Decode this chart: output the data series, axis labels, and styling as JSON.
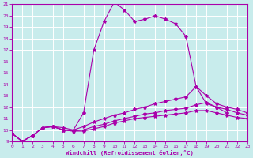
{
  "xlabel": "Windchill (Refroidissement éolien,°C)",
  "xlim": [
    0,
    23
  ],
  "ylim": [
    9,
    21
  ],
  "yticks": [
    9,
    10,
    11,
    12,
    13,
    14,
    15,
    16,
    17,
    18,
    19,
    20,
    21
  ],
  "xticks": [
    0,
    1,
    2,
    3,
    4,
    5,
    6,
    7,
    8,
    9,
    10,
    11,
    12,
    13,
    14,
    15,
    16,
    17,
    18,
    19,
    20,
    21,
    22,
    23
  ],
  "background_color": "#c8ecec",
  "grid_color": "#ffffff",
  "line_color": "#aa00aa",
  "line1_x": [
    0,
    1,
    2,
    3,
    4,
    5,
    6,
    7,
    8,
    9,
    10,
    11,
    12,
    13,
    14,
    15,
    16,
    17,
    18,
    19,
    20,
    21
  ],
  "line1_y": [
    9.7,
    9.0,
    9.5,
    10.2,
    10.3,
    10.2,
    10.0,
    11.5,
    17.0,
    19.5,
    21.2,
    20.5,
    19.5,
    19.7,
    20.0,
    19.7,
    19.3,
    18.2,
    13.8,
    12.3,
    12.0,
    11.5
  ],
  "line2_x": [
    0,
    1,
    2,
    3,
    4,
    5,
    6,
    7,
    8,
    9,
    10,
    11,
    12,
    13,
    14,
    15,
    16,
    17,
    18,
    19,
    20,
    21,
    22,
    23
  ],
  "line2_y": [
    9.7,
    9.0,
    9.5,
    10.2,
    10.3,
    10.0,
    10.0,
    10.3,
    10.7,
    11.0,
    11.3,
    11.5,
    11.8,
    12.0,
    12.3,
    12.5,
    12.7,
    12.9,
    13.8,
    13.0,
    12.3,
    12.0,
    11.8,
    11.5
  ],
  "line3_x": [
    0,
    1,
    2,
    3,
    4,
    5,
    6,
    7,
    8,
    9,
    10,
    11,
    12,
    13,
    14,
    15,
    16,
    17,
    18,
    19,
    20,
    21,
    22,
    23
  ],
  "line3_y": [
    9.7,
    9.0,
    9.5,
    10.2,
    10.3,
    10.0,
    9.9,
    10.0,
    10.3,
    10.5,
    10.8,
    11.0,
    11.2,
    11.4,
    11.5,
    11.7,
    11.8,
    11.9,
    12.2,
    12.4,
    12.0,
    11.8,
    11.5,
    11.3
  ],
  "line4_x": [
    0,
    1,
    2,
    3,
    4,
    5,
    6,
    7,
    8,
    9,
    10,
    11,
    12,
    13,
    14,
    15,
    16,
    17,
    18,
    19,
    20,
    21,
    22,
    23
  ],
  "line4_y": [
    9.7,
    9.0,
    9.5,
    10.2,
    10.3,
    10.0,
    9.9,
    9.9,
    10.1,
    10.3,
    10.6,
    10.8,
    11.0,
    11.1,
    11.2,
    11.3,
    11.4,
    11.5,
    11.7,
    11.7,
    11.5,
    11.3,
    11.1,
    11.0
  ]
}
